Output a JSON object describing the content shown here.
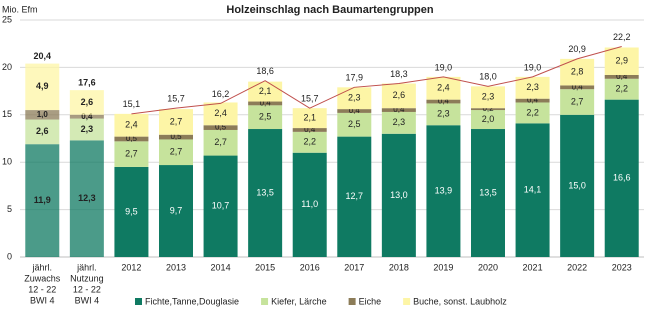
{
  "chart_data": {
    "type": "stacked-bar",
    "title": "Holzeinschlag nach Baumartengruppen",
    "y_label": "Mio. Efm",
    "categories": [
      [
        "jährl.",
        "Zuwachs",
        "12 - 22",
        "BWI 4"
      ],
      [
        "jährl.",
        "Nutzung",
        "12 - 22",
        "BWI 4"
      ],
      [
        "2012"
      ],
      [
        "2013"
      ],
      [
        "2014"
      ],
      [
        "2015"
      ],
      [
        "2016"
      ],
      [
        "2017"
      ],
      [
        "2018"
      ],
      [
        "2019"
      ],
      [
        "2020"
      ],
      [
        "2021"
      ],
      [
        "2022"
      ],
      [
        "2023"
      ]
    ],
    "series": [
      {
        "name": "Fichte,Tanne,Douglasie",
        "color": "#0f7a62",
        "values": [
          11.9,
          12.3,
          9.5,
          9.7,
          10.7,
          13.5,
          11.0,
          12.7,
          13.0,
          13.9,
          13.5,
          14.1,
          15.0,
          16.6
        ],
        "value_labels": [
          "11,9",
          "12,3",
          "9,5",
          "9,7",
          "10,7",
          "13,5",
          "11,0",
          "12,7",
          "13,0",
          "13,9",
          "13,5",
          "14,1",
          "15,0",
          "16,6"
        ]
      },
      {
        "name": "Kiefer, Lärche",
        "color": "#c6e39c",
        "values": [
          2.6,
          2.3,
          2.7,
          2.7,
          2.7,
          2.5,
          2.2,
          2.5,
          2.3,
          2.3,
          2.0,
          2.2,
          2.7,
          2.2
        ],
        "value_labels": [
          "2,6",
          "2,3",
          "2,7",
          "2,7",
          "2,7",
          "2,5",
          "2,2",
          "2,5",
          "2,3",
          "2,3",
          "2,0",
          "2,2",
          "2,7",
          "2,2"
        ]
      },
      {
        "name": "Eiche",
        "color": "#8c7c58",
        "values": [
          1.0,
          0.4,
          0.5,
          0.5,
          0.5,
          0.4,
          0.4,
          0.4,
          0.4,
          0.4,
          0.2,
          0.4,
          0.4,
          0.4
        ],
        "value_labels": [
          "1,0",
          "0,4",
          "0,5",
          "0,5",
          "0,5",
          "0,4",
          "0,4",
          "0,4",
          "0,4",
          "0,4",
          "0,2",
          "0,4",
          "0,4",
          "0,4"
        ]
      },
      {
        "name": "Buche, sonst. Laubholz",
        "color": "#fdf5a6",
        "values": [
          4.9,
          2.6,
          2.4,
          2.7,
          2.4,
          2.1,
          2.1,
          2.3,
          2.6,
          2.4,
          2.3,
          2.3,
          2.8,
          2.9
        ],
        "value_labels": [
          "4,9",
          "2,6",
          "2,4",
          "2,7",
          "2,4",
          "2,1",
          "2,1",
          "2,3",
          "2,6",
          "2,4",
          "2,3",
          "2,3",
          "2,8",
          "2,9"
        ]
      }
    ],
    "total": {
      "color": "#c0504d",
      "line_start": 2,
      "values": [
        20.4,
        17.6,
        15.1,
        15.7,
        16.2,
        18.6,
        15.7,
        17.9,
        18.3,
        19.0,
        18.0,
        19.0,
        20.9,
        22.2
      ],
      "value_labels": [
        "20,4",
        "17,6",
        "15,1",
        "15,7",
        "16,2",
        "18,6",
        "15,7",
        "17,9",
        "18,3",
        "19,0",
        "18,0",
        "19,0",
        "20,9",
        "22,2"
      ]
    },
    "ylim": [
      0,
      25
    ],
    "yticks": [
      0,
      5,
      10,
      15,
      20,
      25
    ],
    "grid": true
  }
}
